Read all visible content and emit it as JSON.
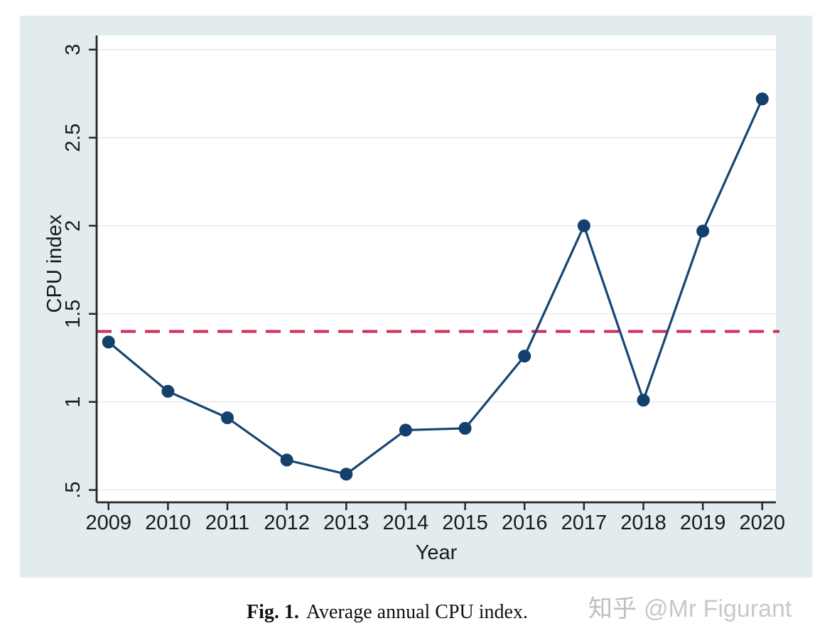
{
  "page": {
    "caption": {
      "fig_label": "Fig. 1.",
      "text": "Average annual CPU index."
    },
    "watermark": {
      "logo": "知乎",
      "user": "@Mr Figurant"
    }
  },
  "chart_data": {
    "type": "line",
    "title": "Average annual CPU index",
    "xlabel": "Year",
    "ylabel": "CPU index",
    "x": [
      2009,
      2010,
      2011,
      2012,
      2013,
      2014,
      2015,
      2016,
      2017,
      2018,
      2019,
      2020
    ],
    "series": [
      {
        "name": "CPU index",
        "marker": "circle",
        "values": [
          1.34,
          1.06,
          0.91,
          0.67,
          0.59,
          0.84,
          0.85,
          1.26,
          2.0,
          1.01,
          1.97,
          2.72
        ]
      }
    ],
    "reference_line": {
      "value": 1.4,
      "style": "dashed",
      "label": ""
    },
    "yticks": [
      {
        "value": 0.5,
        "label": ".5"
      },
      {
        "value": 1,
        "label": "1"
      },
      {
        "value": 1.5,
        "label": "1.5"
      },
      {
        "value": 2,
        "label": "2"
      },
      {
        "value": 2.5,
        "label": "2.5"
      },
      {
        "value": 3,
        "label": "3"
      }
    ],
    "xlim": [
      2008.8,
      2020.23
    ],
    "ylim": [
      0.43,
      3.08
    ],
    "grid": true,
    "legend": "none",
    "colors": {
      "series_line": "#174572",
      "marker": "#14406d",
      "reference_line": "#cf2e55",
      "chart_background": "#e2ebee",
      "plot_background": "#ffffff",
      "gridline": "#e9edf2",
      "axis": "#262626",
      "tick_text": "#1a1a1a"
    }
  }
}
